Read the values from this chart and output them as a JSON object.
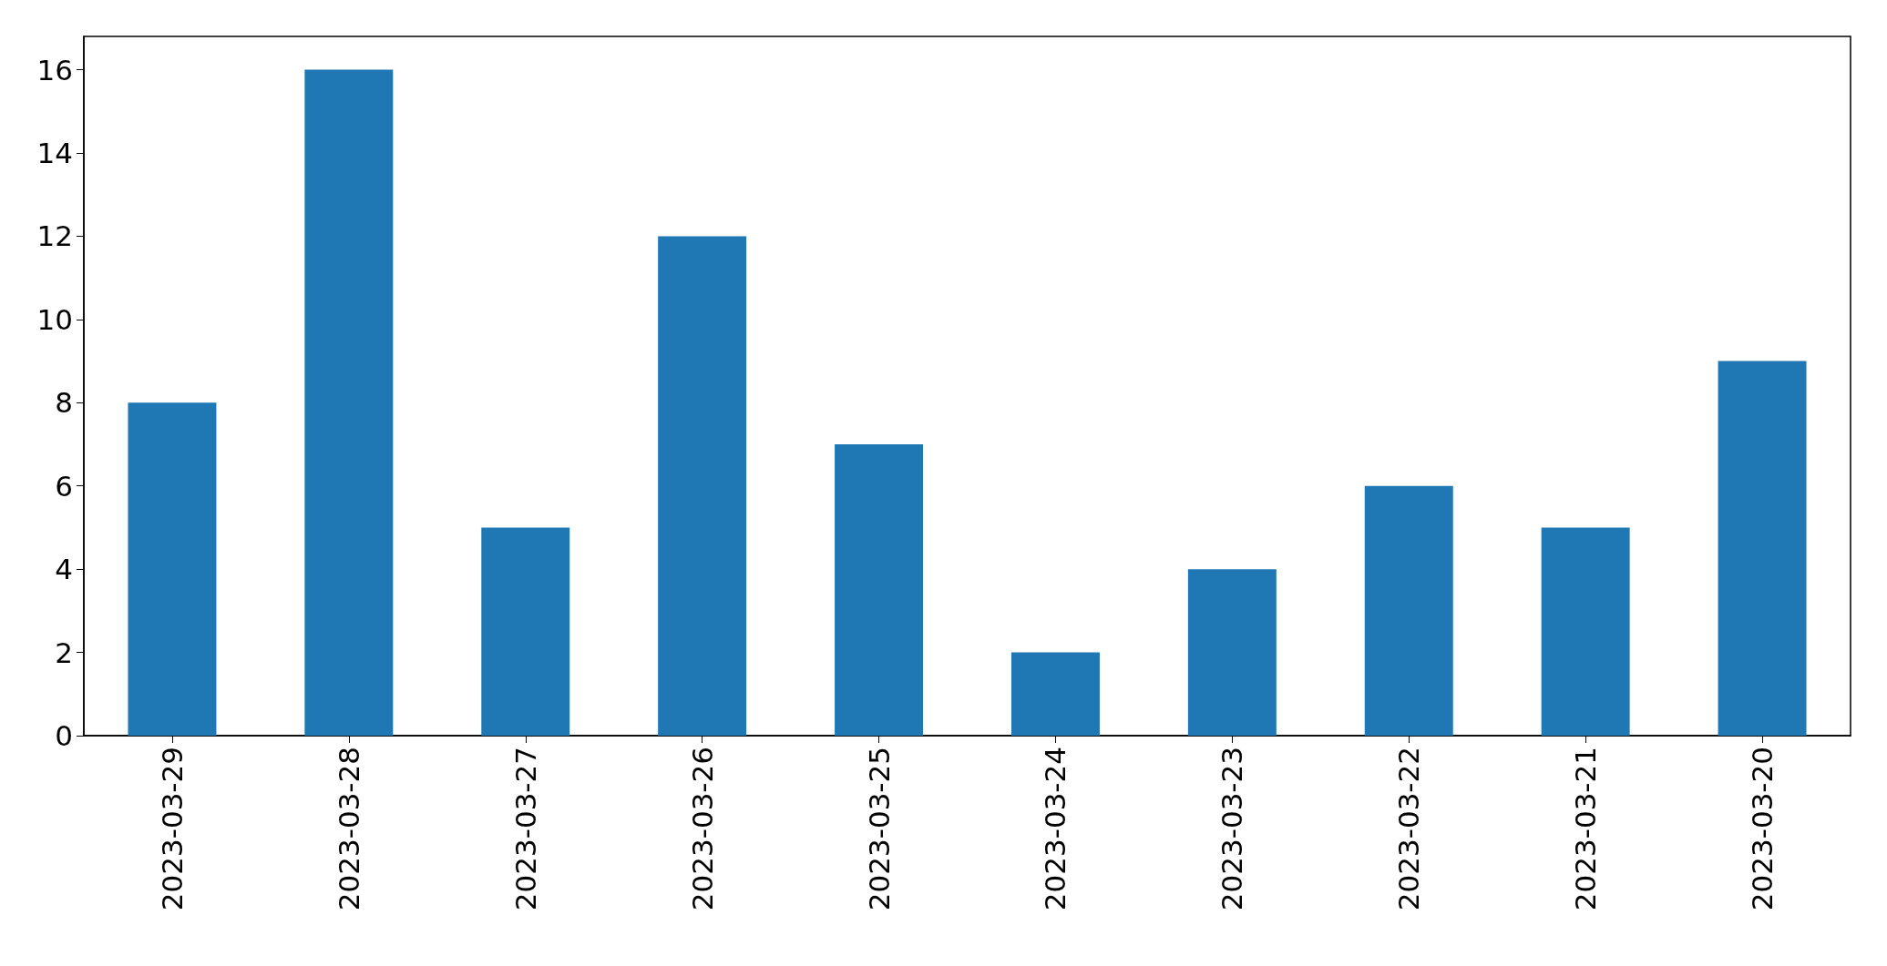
{
  "chart_data": {
    "type": "bar",
    "categories": [
      "2023-03-29",
      "2023-03-28",
      "2023-03-27",
      "2023-03-26",
      "2023-03-25",
      "2023-03-24",
      "2023-03-23",
      "2023-03-22",
      "2023-03-21",
      "2023-03-20"
    ],
    "values": [
      8,
      16,
      5,
      12,
      7,
      2,
      4,
      6,
      5,
      9
    ],
    "color": "#1f77b4",
    "ylim": [
      0,
      16.8
    ],
    "yticks": [
      0,
      2,
      4,
      6,
      8,
      10,
      12,
      14,
      16
    ],
    "grid": false
  }
}
